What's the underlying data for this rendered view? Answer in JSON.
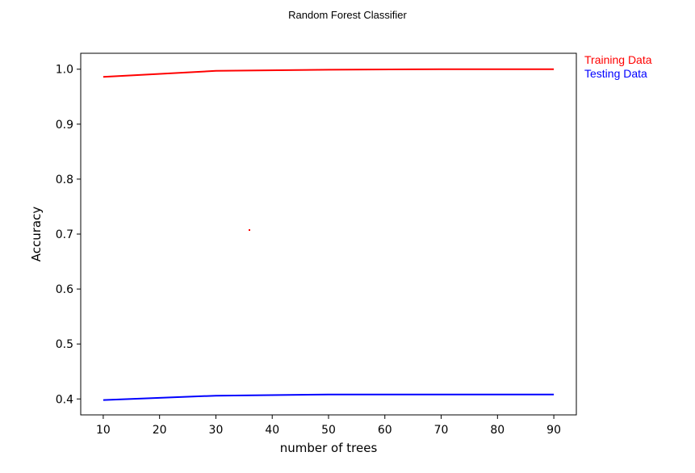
{
  "chart_data": {
    "type": "line",
    "title": "Random Forest Classifier",
    "xlabel": "number of trees",
    "ylabel": "Accuracy",
    "x": [
      10,
      30,
      50,
      70,
      90
    ],
    "series": [
      {
        "name": "Training Data",
        "color": "#ff0000",
        "values": [
          0.986,
          0.997,
          0.999,
          1.0,
          1.0
        ]
      },
      {
        "name": "Testing Data",
        "color": "#0000ff",
        "values": [
          0.398,
          0.406,
          0.408,
          0.408,
          0.408
        ]
      }
    ],
    "xticks": [
      10,
      20,
      30,
      40,
      50,
      60,
      70,
      80,
      90
    ],
    "yticks": [
      0.4,
      0.5,
      0.6,
      0.7,
      0.8,
      0.9,
      1.0
    ],
    "xlim": [
      6,
      94
    ],
    "ylim": [
      0.371,
      1.029
    ],
    "grid": false,
    "legend_position": "outside-top-right"
  }
}
